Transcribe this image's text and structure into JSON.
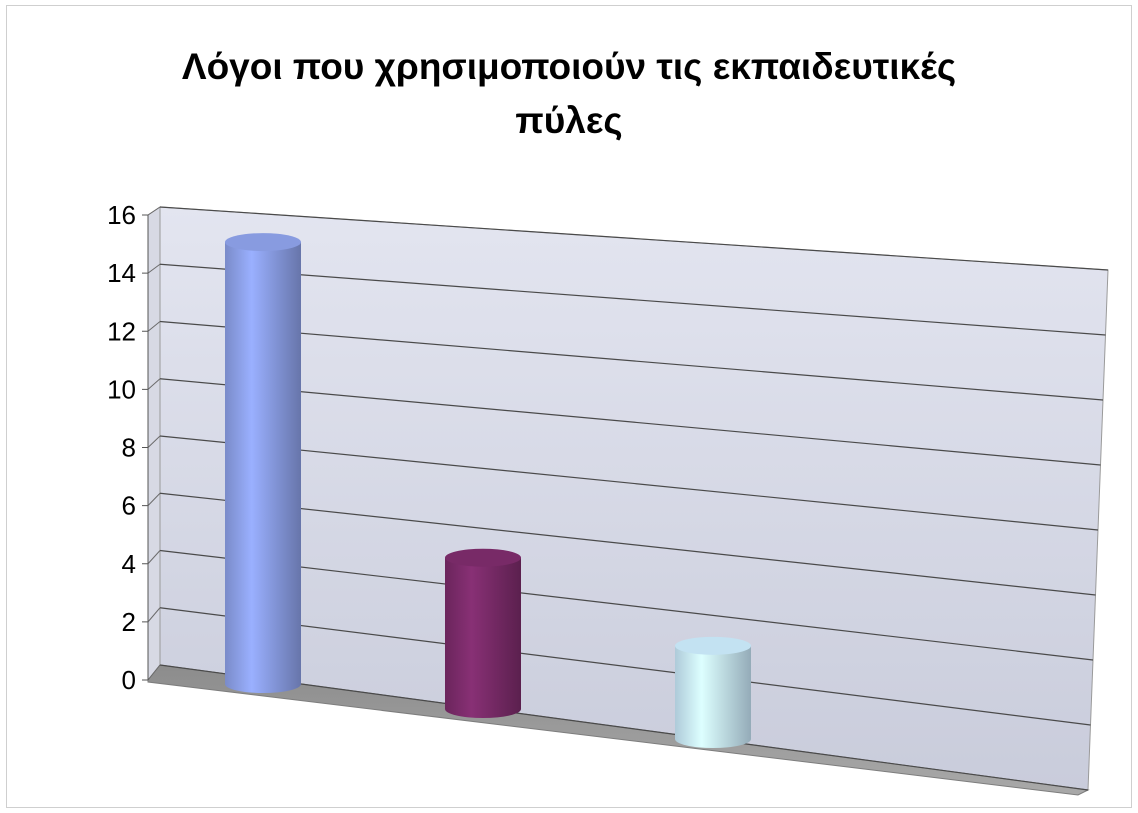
{
  "chart_data": {
    "type": "bar",
    "style": "3d-cylinder",
    "title_lines": [
      "Λόγοι που χρησιμοποιούν τις εκπαιδευτικές",
      "πύλες"
    ],
    "categories": [
      "",
      "",
      ""
    ],
    "values": [
      15,
      5,
      3
    ],
    "colors": [
      "#8fa3ec",
      "#7e2c6c",
      "#cdeeff"
    ],
    "ylim": [
      0,
      16
    ],
    "yticks": [
      0,
      2,
      4,
      6,
      8,
      10,
      12,
      14,
      16
    ],
    "grid": true,
    "legend": "none"
  }
}
